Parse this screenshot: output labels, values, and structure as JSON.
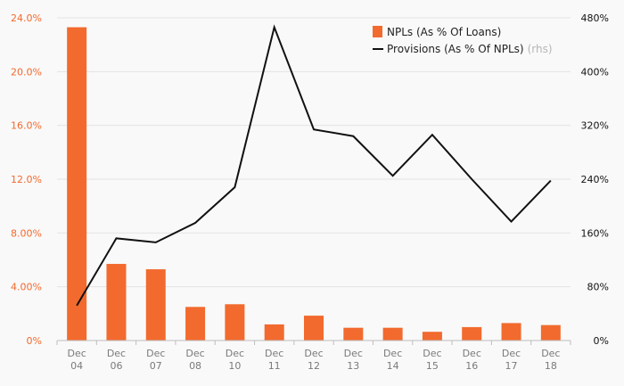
{
  "chart_data": {
    "type": "bar",
    "categories": [
      [
        "Dec",
        "04"
      ],
      [
        "Dec",
        "06"
      ],
      [
        "Dec",
        "07"
      ],
      [
        "Dec",
        "08"
      ],
      [
        "Dec",
        "10"
      ],
      [
        "Dec",
        "11"
      ],
      [
        "Dec",
        "12"
      ],
      [
        "Dec",
        "13"
      ],
      [
        "Dec",
        "14"
      ],
      [
        "Dec",
        "15"
      ],
      [
        "Dec",
        "16"
      ],
      [
        "Dec",
        "17"
      ],
      [
        "Dec",
        "18"
      ]
    ],
    "series": [
      {
        "name": "NPLs (As % Of Loans)",
        "type": "bar",
        "axis": "left",
        "color": "#f26a2e",
        "values": [
          23.3,
          5.7,
          5.3,
          2.5,
          2.7,
          1.2,
          1.85,
          0.95,
          0.95,
          0.65,
          1.0,
          1.3,
          1.15
        ]
      },
      {
        "name": "Provisions (As % Of NPLs)",
        "name_note": "(rhs)",
        "type": "line",
        "axis": "right",
        "color": "#111111",
        "values": [
          52,
          152,
          146,
          175,
          228,
          466,
          314,
          304,
          245,
          306,
          240,
          177,
          238
        ]
      }
    ],
    "left_axis": {
      "ylim": [
        0,
        24
      ],
      "ticks": [
        0,
        4,
        8,
        12,
        16,
        20,
        24
      ],
      "tick_labels": [
        "0%",
        "4.00%",
        "8.00%",
        "12.0%",
        "16.0%",
        "20.0%",
        "24.0%"
      ]
    },
    "right_axis": {
      "ylim": [
        0,
        480
      ],
      "ticks": [
        0,
        80,
        160,
        240,
        320,
        400,
        480
      ],
      "tick_labels": [
        "0%",
        "80%",
        "160%",
        "240%",
        "320%",
        "400%",
        "480%"
      ]
    },
    "grid": true,
    "legend": "top-right"
  }
}
